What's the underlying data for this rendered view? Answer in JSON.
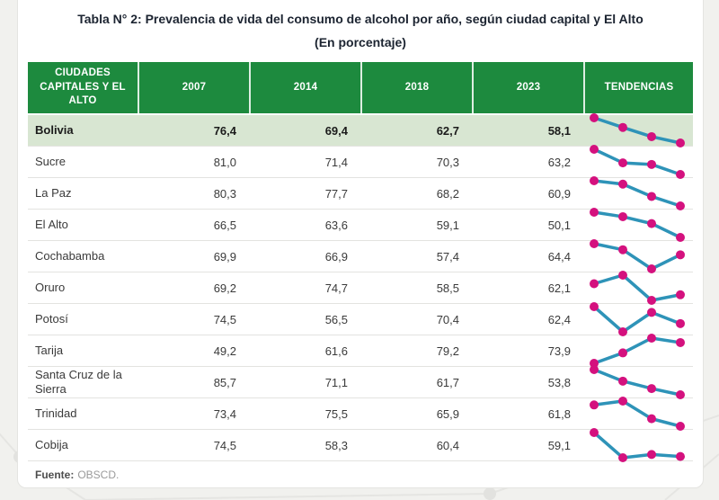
{
  "title": {
    "line1": "Tabla N° 2: Prevalencia de vida del consumo de alcohol por año, según ciudad capital y El Alto",
    "line2": "(En porcentaje)"
  },
  "header": {
    "col_cities": "CIUDADES CAPITALES Y EL ALTO",
    "years": [
      "2007",
      "2014",
      "2018",
      "2023"
    ],
    "trend": "TENDENCIAS"
  },
  "chart_data": {
    "type": "table",
    "title": "Tabla N° 2: Prevalencia de vida del consumo de alcohol por año, según ciudad capital y El Alto (En porcentaje)",
    "columns": [
      "CIUDADES CAPITALES Y EL ALTO",
      "2007",
      "2014",
      "2018",
      "2023",
      "TENDENCIAS"
    ],
    "x": [
      2007,
      2014,
      2018,
      2023
    ],
    "sparkline_type": "line",
    "sparkline_scaling": "per-row min-max",
    "decimal_separator": ",",
    "series": [
      {
        "name": "Bolivia",
        "values": [
          76.4,
          69.4,
          62.7,
          58.1
        ],
        "highlight": true
      },
      {
        "name": "Sucre",
        "values": [
          81.0,
          71.4,
          70.3,
          63.2
        ]
      },
      {
        "name": "La Paz",
        "values": [
          80.3,
          77.7,
          68.2,
          60.9
        ]
      },
      {
        "name": "El Alto",
        "values": [
          66.5,
          63.6,
          59.1,
          50.1
        ]
      },
      {
        "name": "Cochabamba",
        "values": [
          69.9,
          66.9,
          57.4,
          64.4
        ]
      },
      {
        "name": "Oruro",
        "values": [
          69.2,
          74.7,
          58.5,
          62.1
        ]
      },
      {
        "name": "Potosí",
        "values": [
          74.5,
          56.5,
          70.4,
          62.4
        ]
      },
      {
        "name": "Tarija",
        "values": [
          49.2,
          61.6,
          79.2,
          73.9
        ]
      },
      {
        "name": "Santa Cruz de la Sierra",
        "values": [
          85.7,
          71.1,
          61.7,
          53.8
        ]
      },
      {
        "name": "Trinidad",
        "values": [
          73.4,
          75.5,
          65.9,
          61.8
        ]
      },
      {
        "name": "Cobija",
        "values": [
          74.5,
          58.3,
          60.4,
          59.1
        ]
      }
    ]
  },
  "footer": {
    "label": "Fuente:",
    "text": "OBSCD."
  },
  "colors": {
    "page_bg": "#f1f1ee",
    "header_bg": "#1d8a3e",
    "header_text": "#ffffff",
    "highlight_row_bg": "#d8e6d2",
    "spark_line": "#2e93b8",
    "spark_dot": "#d4117e",
    "title_text": "#1c2431",
    "row_divider": "#e3e3e0"
  }
}
